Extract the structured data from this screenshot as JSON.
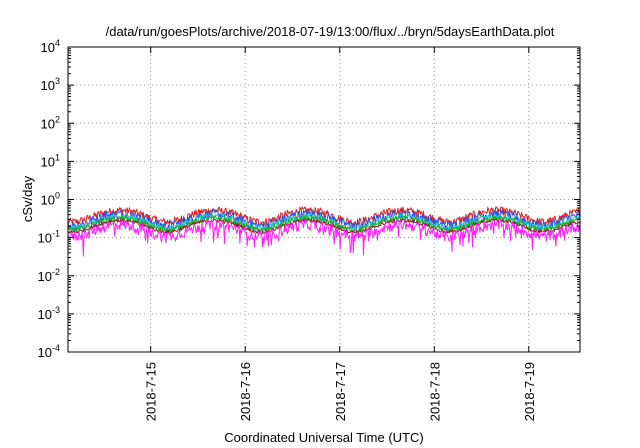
{
  "chart_data": {
    "type": "line",
    "title": "/data/run/goesPlots/archive/2018-07-19/13:00/flux/../bryn/5daysEarthData.plot",
    "xlabel": "Coordinated Universal Time (UTC)",
    "ylabel": "cSv/day",
    "yscale": "log",
    "ylim": [
      0.0001,
      10000
    ],
    "y_ticks": [
      {
        "value": 0.0001,
        "base": "10",
        "exp": "-4"
      },
      {
        "value": 0.001,
        "base": "10",
        "exp": "-3"
      },
      {
        "value": 0.01,
        "base": "10",
        "exp": "-2"
      },
      {
        "value": 0.1,
        "base": "10",
        "exp": "-1"
      },
      {
        "value": 1,
        "base": "10",
        "exp": "0"
      },
      {
        "value": 10,
        "base": "10",
        "exp": "1"
      },
      {
        "value": 100,
        "base": "10",
        "exp": "2"
      },
      {
        "value": 1000,
        "base": "10",
        "exp": "3"
      },
      {
        "value": 10000,
        "base": "10",
        "exp": "4"
      }
    ],
    "xlim": [
      "2018-07-14T03:00",
      "2018-07-19T13:00"
    ],
    "x_ticks": [
      "2018-7-15",
      "2018-7-16",
      "2018-7-17",
      "2018-7-18",
      "2018-7-19"
    ],
    "grid": true,
    "series": [
      {
        "color": "#e02020",
        "approx_level": 0.52,
        "spread": 0.2
      },
      {
        "color": "#3050e0",
        "approx_level": 0.42,
        "spread": 0.24
      },
      {
        "color": "#20c8d0",
        "approx_level": 0.36,
        "spread": 0.16
      },
      {
        "color": "#20b020",
        "approx_level": 0.32,
        "spread": 0.12
      },
      {
        "color": "#8a2020",
        "approx_level": 0.28,
        "spread": 0.08
      },
      {
        "color": "#ff20ff",
        "approx_level": 0.22,
        "spread": 0.26
      }
    ]
  }
}
